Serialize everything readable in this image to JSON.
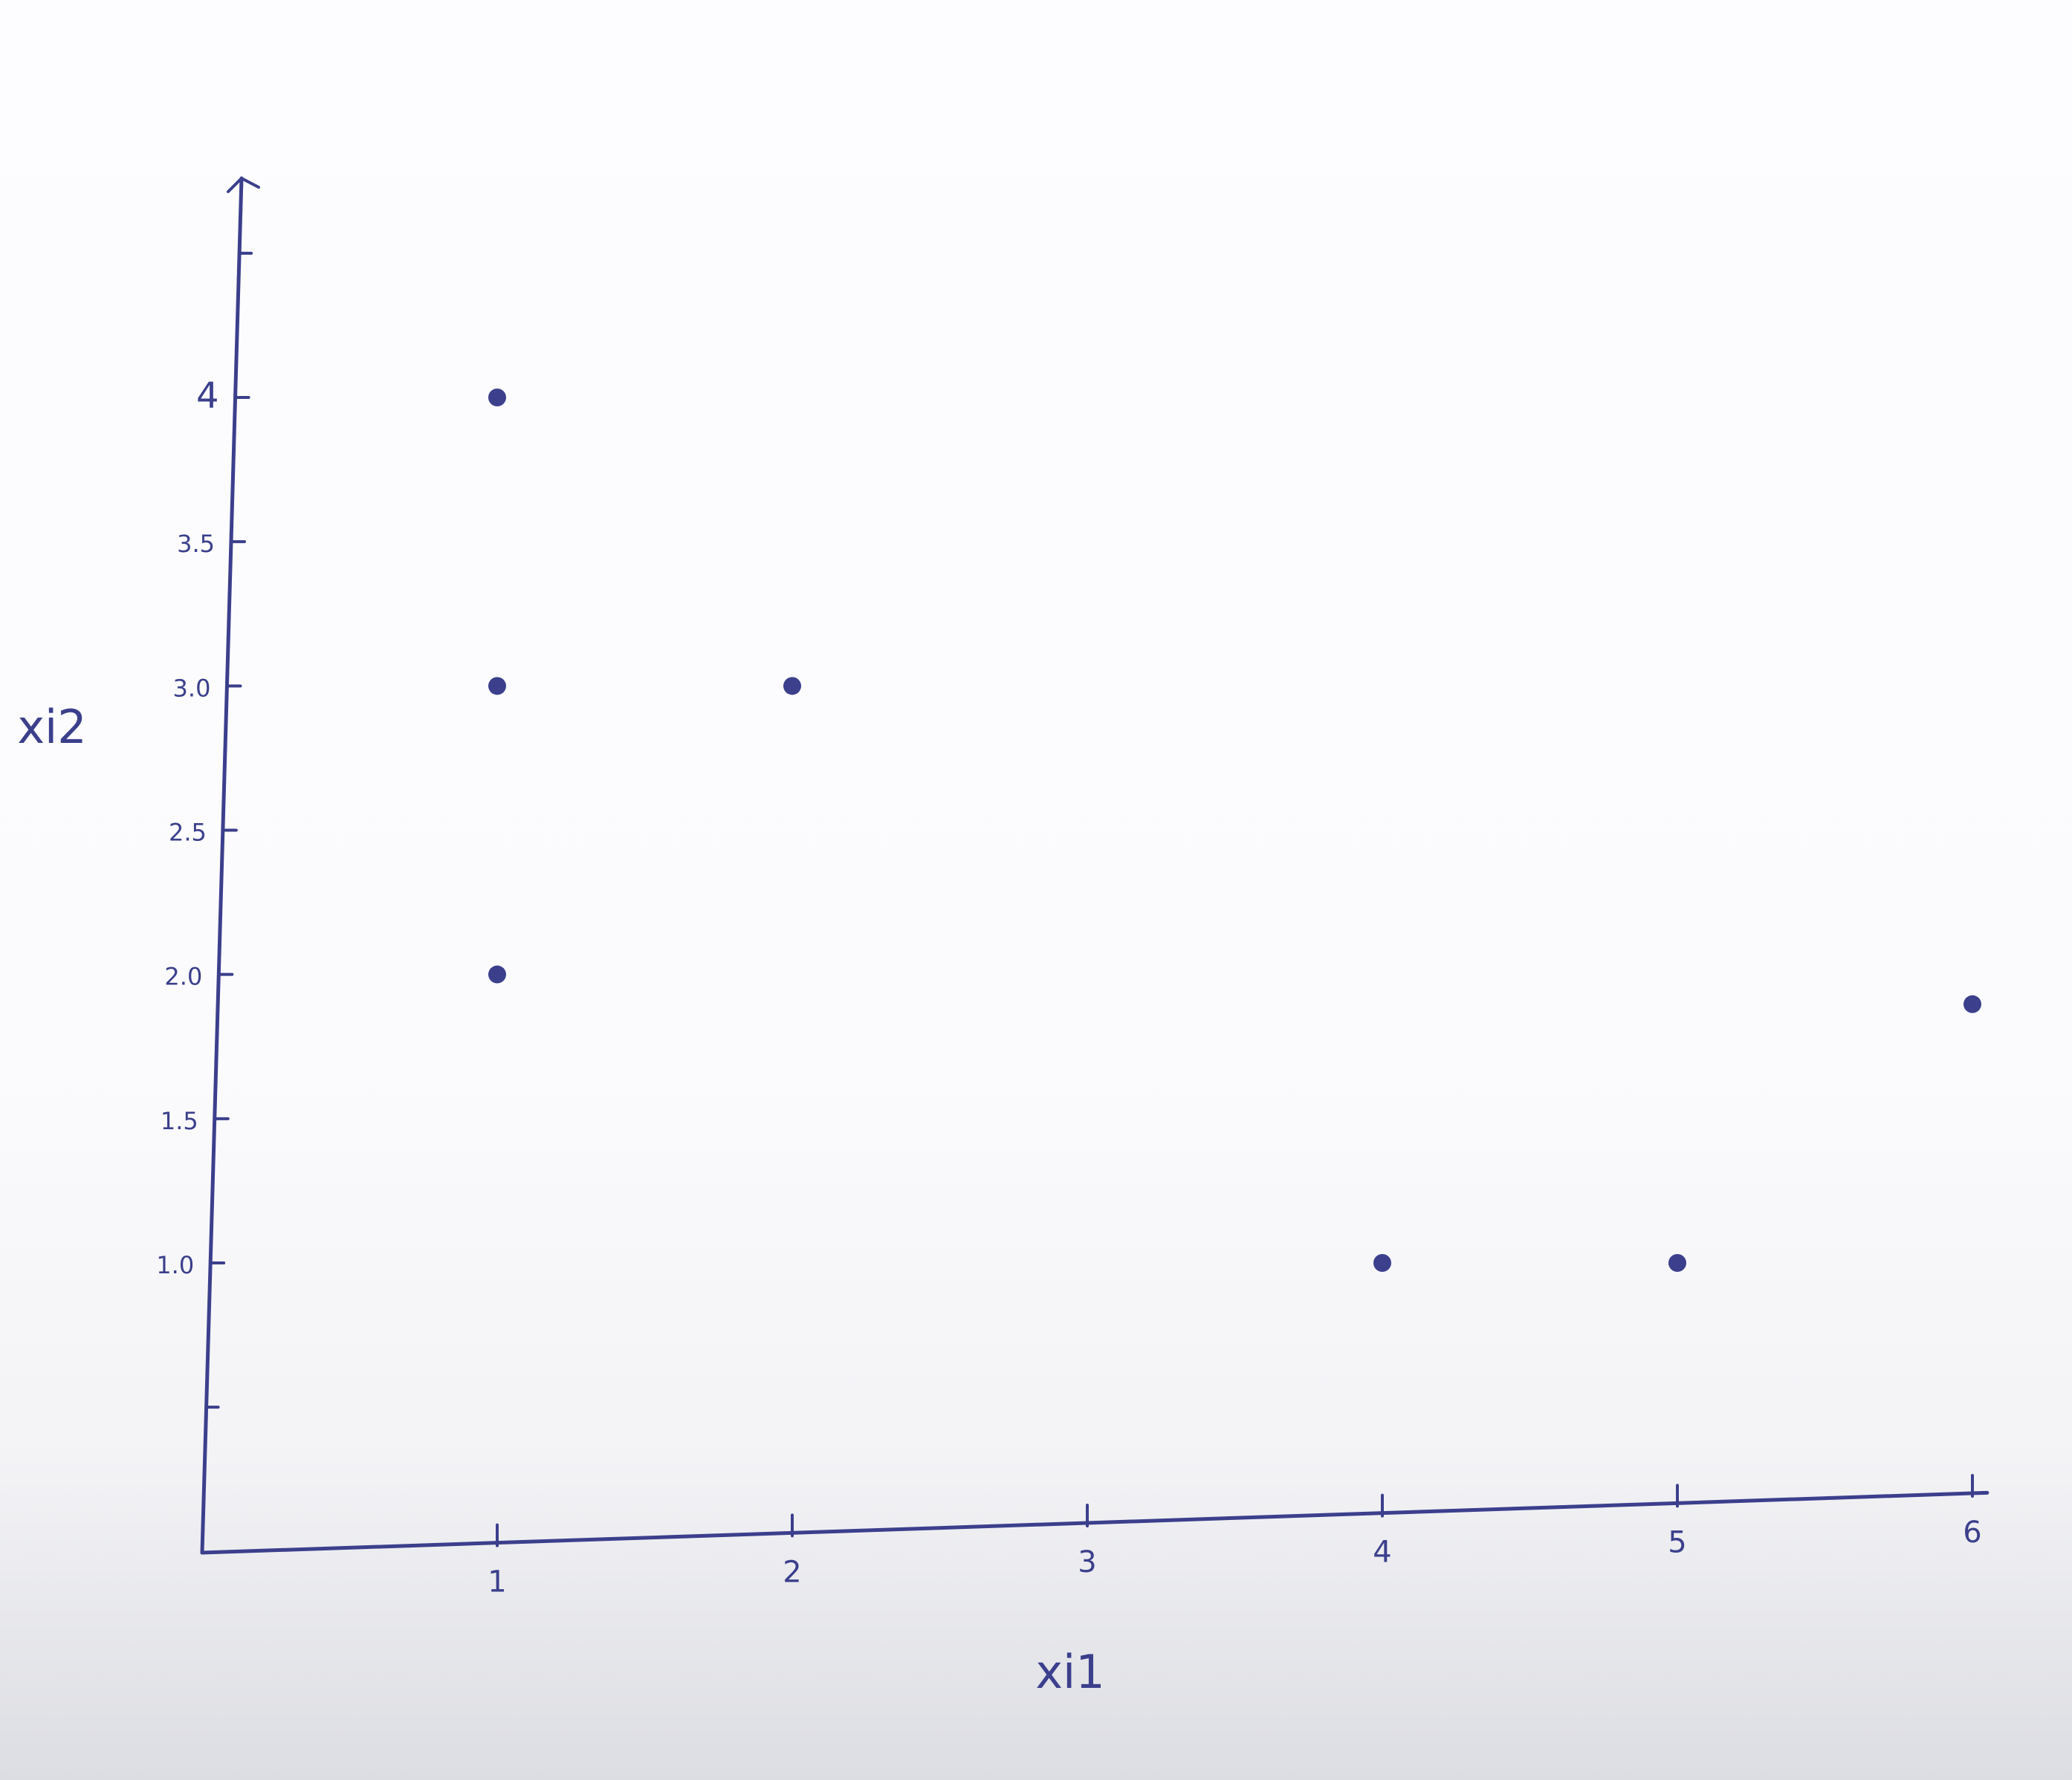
{
  "chart_data": {
    "type": "scatter",
    "title": "",
    "xlabel": "xi1",
    "ylabel": "xi2",
    "xlim": [
      0,
      6
    ],
    "ylim": [
      0.5,
      4.8
    ],
    "x_ticks": [
      "1",
      "2",
      "3",
      "4",
      "5",
      "6"
    ],
    "y_ticks": [
      "1.0",
      "1.5",
      "2.0",
      "2.5",
      "3.0",
      "3.5",
      "4"
    ],
    "grid": false,
    "legend": "none",
    "points": [
      {
        "x": 1,
        "y": 4.0
      },
      {
        "x": 1,
        "y": 3.0
      },
      {
        "x": 1,
        "y": 2.0
      },
      {
        "x": 2,
        "y": 3.0
      },
      {
        "x": 4,
        "y": 1.0
      },
      {
        "x": 5,
        "y": 1.0
      },
      {
        "x": 6,
        "y": 2.0
      }
    ],
    "colors": {
      "ink": "#3b3f8c",
      "paper": "#fcfcfe"
    }
  }
}
